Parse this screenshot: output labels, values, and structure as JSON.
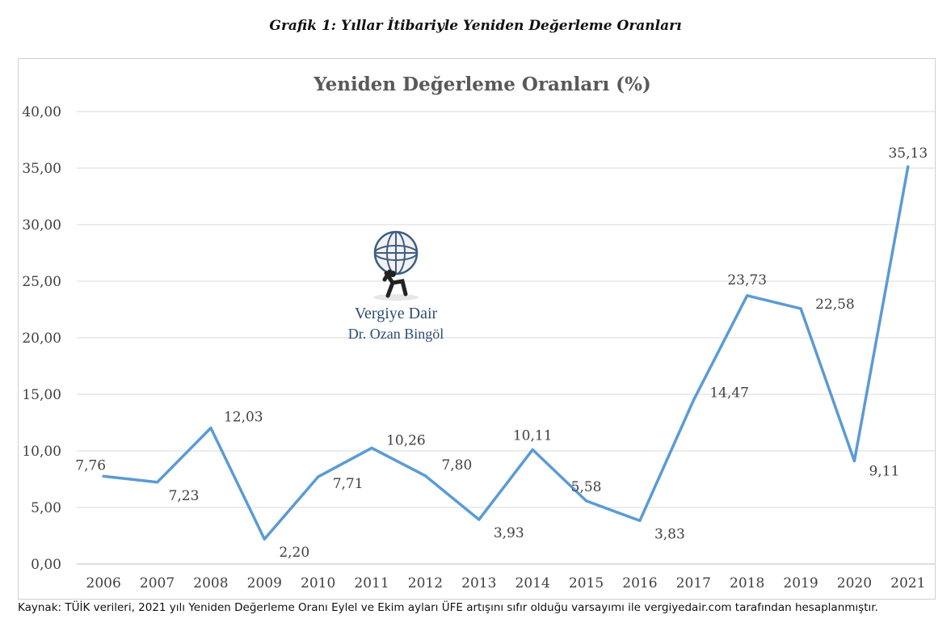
{
  "caption": "Grafik 1: Yıllar İtibariyle Yeniden Değerleme Oranları",
  "source_note": "Kaynak: TÜİK verileri, 2021 yılı Yeniden Değerleme Oranı Eylel ve Ekim ayları ÜFE artışını sıfır olduğu varsayımı ile vergiyedair.com tarafından hesaplanmıştır.",
  "watermark": {
    "line1": "Vergiye Dair",
    "line2": "Dr. Ozan Bingöl",
    "icon": "atlas-globe-icon"
  },
  "colors": {
    "line": "#5b9bd5",
    "grid": "#d9d9d9",
    "text": "#404040",
    "title": "#595959"
  },
  "chart_data": {
    "type": "line",
    "title": "Yeniden Değerleme Oranları (%)",
    "xlabel": "",
    "ylabel": "",
    "categories": [
      "2006",
      "2007",
      "2008",
      "2009",
      "2010",
      "2011",
      "2012",
      "2013",
      "2014",
      "2015",
      "2016",
      "2017",
      "2018",
      "2019",
      "2020",
      "2021"
    ],
    "series": [
      {
        "values": [
          7.76,
          7.23,
          12.03,
          2.2,
          7.71,
          10.26,
          7.8,
          3.93,
          10.11,
          5.58,
          3.83,
          14.47,
          23.73,
          22.58,
          9.11,
          35.13
        ]
      }
    ],
    "data_labels": [
      "7,76",
      "7,23",
      "12,03",
      "2,20",
      "7,71",
      "10,26",
      "7,80",
      "3,93",
      "10,11",
      "5,58",
      "3,83",
      "14,47",
      "23,73",
      "22,58",
      "9,11",
      "35,13"
    ],
    "ylim": [
      0,
      40
    ],
    "yticks": [
      "0,00",
      "5,00",
      "10,00",
      "15,00",
      "20,00",
      "25,00",
      "30,00",
      "35,00",
      "40,00"
    ],
    "grid": true,
    "legend": "none"
  }
}
